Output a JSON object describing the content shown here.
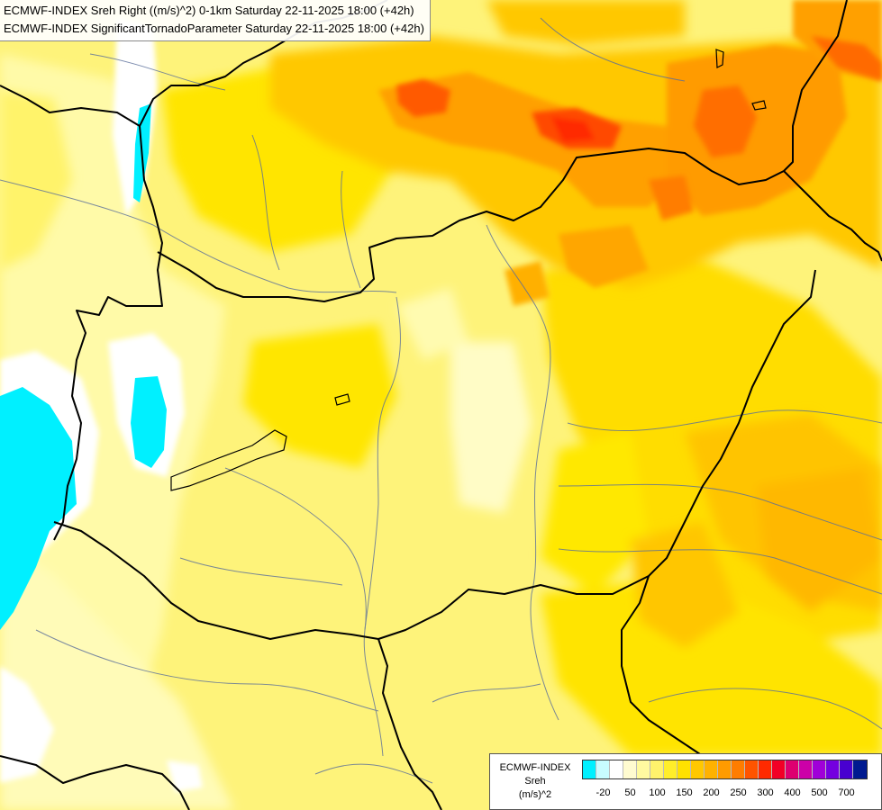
{
  "title_lines": [
    "ECMWF-INDEX Sreh Right ((m/s)^2) 0-1km Saturday 22-11-2025 18:00 (+42h)",
    "ECMWF-INDEX SignificantTornadoParameter Saturday 22-11-2025 18:00 (+42h)"
  ],
  "legend": {
    "line1": "ECMWF-INDEX",
    "line2": "Sreh",
    "line3": "(m/s)^2",
    "colors": [
      "#00f0ff",
      "#c8fcff",
      "#ffffff",
      "#fffbd0",
      "#fffaa0",
      "#fff36c",
      "#ffee2a",
      "#ffe100",
      "#ffc800",
      "#ffb200",
      "#ff9b00",
      "#ff7d00",
      "#ff5400",
      "#ff2a00",
      "#f20026",
      "#dd0070",
      "#cc00a8",
      "#a000d8",
      "#7400e0",
      "#4800d0",
      "#001a90"
    ],
    "ticks": [
      {
        "label": "-20",
        "index": 1
      },
      {
        "label": "50",
        "index": 3
      },
      {
        "label": "100",
        "index": 5
      },
      {
        "label": "150",
        "index": 7
      },
      {
        "label": "200",
        "index": 9
      },
      {
        "label": "250",
        "index": 11
      },
      {
        "label": "300",
        "index": 13
      },
      {
        "label": "400",
        "index": 15
      },
      {
        "label": "500",
        "index": 17
      },
      {
        "label": "700",
        "index": 19
      }
    ]
  }
}
